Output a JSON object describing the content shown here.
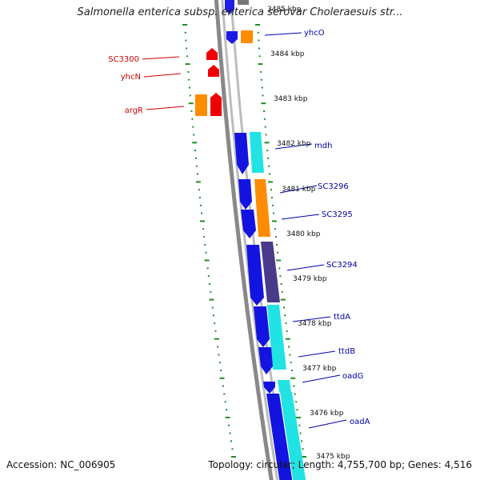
{
  "title": "Salmonella enterica subsp. enterica serovar Choleraesuis str...",
  "footer": {
    "accession": "Accession: NC_006905",
    "summary": "Topology: circular; Length: 4,755,700 bp; Genes: 4,516"
  },
  "colors": {
    "reverse_label": "#cc0000",
    "forward_label": "#0000aa",
    "tick": "#228b22",
    "backbone": "#888888"
  },
  "kbp_labels": [
    "3485 kbp",
    "3484 kbp",
    "3483 kbp",
    "3482 kbp",
    "3481 kbp",
    "3480 kbp",
    "3479 kbp",
    "3478 kbp",
    "3477 kbp",
    "3476 kbp",
    "3475 kbp"
  ],
  "genes_reverse": [
    {
      "label": "SC3300",
      "color": "#ff0000"
    },
    {
      "label": "yhcN",
      "color": "#ff0000"
    },
    {
      "label": "argR",
      "color": "#ff0000"
    }
  ],
  "genes_forward": [
    {
      "label": "yhcO",
      "color": "#0000ff"
    },
    {
      "label": "mdh",
      "color": "#0000ff"
    },
    {
      "label": "SC3296",
      "color": "#0000ff"
    },
    {
      "label": "SC3295",
      "color": "#0000ff"
    },
    {
      "label": "SC3294",
      "color": "#0000ff"
    },
    {
      "label": "ttdA",
      "color": "#0000ff"
    },
    {
      "label": "ttdB",
      "color": "#0000ff"
    },
    {
      "label": "oadG",
      "color": "#0000ff"
    },
    {
      "label": "oadA",
      "color": "#0000ff"
    }
  ]
}
